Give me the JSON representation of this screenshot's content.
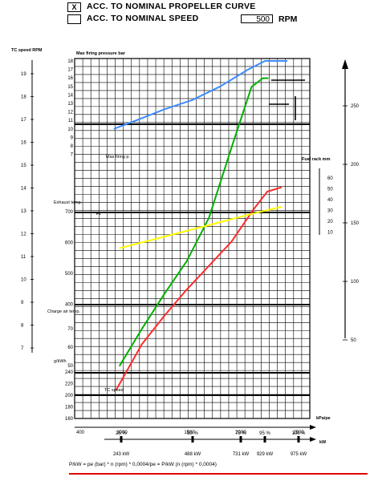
{
  "header": {
    "option1": {
      "check": "X",
      "label": "ACC. TO NOMINAL PROPELLER CURVE",
      "checked": true
    },
    "option2": {
      "check": "",
      "label": "ACC. TO NOMINAL SPEED",
      "checked": false
    },
    "rpm_value": "500",
    "rpm_unit": "RPM"
  },
  "labels": {
    "tc_speed_axis": "TC speed RPM",
    "max_firing_axis": "Max firing pressure bar",
    "max_firing_curve": "Max firing p.",
    "exhaust_temp": "Exhaust temp.",
    "charge_air_temp": "Charge air temp.",
    "sfc_unit": "g/kWh",
    "fuel_rack": "Fuel rack mm",
    "pi_label": "Pi",
    "tc_speed_curve": "TC speed",
    "kpa_pe": "kPa/pe",
    "kw": "kW",
    "formula": "P/kW = pe (bar) * n (rpm) * 0,0004/pe = P/kW (n (rpm) * 0,0004)"
  },
  "chart_data": {
    "type": "line",
    "x_axis": {
      "label": "kPa/pe",
      "ticks": [
        "400",
        "1000",
        "1500",
        "2000",
        "2500"
      ],
      "range": [
        600,
        2700
      ]
    },
    "power_axis": {
      "label": "kW",
      "ticks": [
        {
          "kw": "243 kW",
          "pct": "25 %"
        },
        {
          "kw": "488 kW",
          "pct": "50 %"
        },
        {
          "kw": "731 kW",
          "pct": "75 %"
        },
        {
          "kw": "929 kW",
          "pct": "95 %"
        },
        {
          "kw": "975 kW",
          "pct": "100 %"
        }
      ]
    },
    "left_axes": {
      "tc_speed_ticks": [
        "19",
        "18",
        "17",
        "16",
        "15",
        "14",
        "13",
        "12",
        "11",
        "10",
        "9",
        "8",
        "7"
      ],
      "max_firing_ticks": [
        "18",
        "17",
        "16",
        "15",
        "14",
        "13",
        "12",
        "11",
        "10",
        "9",
        "8",
        "7"
      ],
      "exhaust_temp_ticks": [
        "700",
        "600",
        "500",
        "400"
      ],
      "charge_air_ticks": [
        "70",
        "60",
        "50"
      ],
      "sfc_ticks": [
        "240",
        "220",
        "200",
        "180",
        "160"
      ]
    },
    "right_axes": {
      "outer_ticks": [
        "250",
        "200",
        "150",
        "100",
        "50"
      ],
      "fuel_rack_ticks": [
        "60",
        "50",
        "40",
        "30",
        "20",
        "10"
      ]
    },
    "series": [
      {
        "name": "Max firing p.",
        "color": "#3d8bff",
        "points": [
          [
            950,
            10.0
          ],
          [
            1150,
            11.0
          ],
          [
            1400,
            12.3
          ],
          [
            1650,
            13.4
          ],
          [
            1900,
            15.0
          ],
          [
            2150,
            17.0
          ],
          [
            2300,
            18.0
          ],
          [
            2500,
            18.0
          ]
        ]
      },
      {
        "name": "",
        "color": "#00b000",
        "points": [
          [
            1000,
            24
          ],
          [
            1200,
            41
          ],
          [
            1400,
            57
          ],
          [
            1600,
            72
          ],
          [
            1800,
            92
          ],
          [
            2000,
            124
          ],
          [
            2180,
            152
          ],
          [
            2280,
            156
          ],
          [
            2330,
            156
          ]
        ]
      },
      {
        "name": "TC speed",
        "color": "#ff2b2b",
        "points": [
          [
            970,
            13
          ],
          [
            1200,
            34
          ],
          [
            1400,
            47
          ],
          [
            1600,
            59
          ],
          [
            1800,
            70
          ],
          [
            2000,
            81
          ],
          [
            2200,
            96
          ],
          [
            2320,
            104
          ],
          [
            2450,
            106
          ]
        ]
      },
      {
        "name": "Pi",
        "color": "#ffff00",
        "points": [
          [
            1000,
            78
          ],
          [
            1300,
            82
          ],
          [
            1600,
            86
          ],
          [
            1900,
            90
          ],
          [
            2200,
            94
          ],
          [
            2450,
            97
          ]
        ]
      }
    ],
    "grid": true,
    "y_scale": "mm of chart (0 = bottom grid line, 165 = top)"
  }
}
